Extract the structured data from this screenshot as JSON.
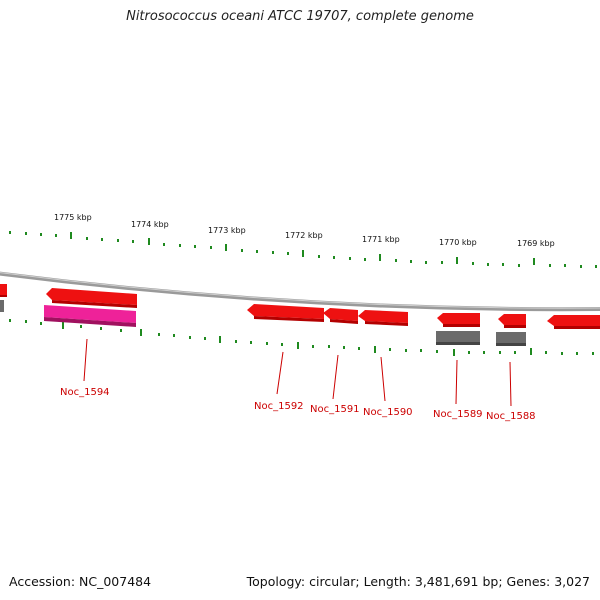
{
  "title": "Nitrosococcus oceani ATCC 19707, complete genome",
  "footer": {
    "accession": "Accession: NC_007484",
    "topology": "Topology: circular; Length: 3,481,691 bp; Genes: 3,027"
  },
  "kbp_labels": [
    "1775 kbp",
    "1774 kbp",
    "1773 kbp",
    "1772 kbp",
    "1771 kbp",
    "1770 kbp",
    "1769 kbp"
  ],
  "gene_labels": [
    "Noc_1594",
    "Noc_1592",
    "Noc_1591",
    "Noc_1590",
    "Noc_1589",
    "Noc_1588"
  ],
  "colors": {
    "gene": "#ee1111",
    "gene_pink": "#ee2299",
    "gene_gray": "#6b6b6b",
    "tick": "#1f8a1f",
    "backbone": "#8a8a8a",
    "label": "#cc0000"
  }
}
